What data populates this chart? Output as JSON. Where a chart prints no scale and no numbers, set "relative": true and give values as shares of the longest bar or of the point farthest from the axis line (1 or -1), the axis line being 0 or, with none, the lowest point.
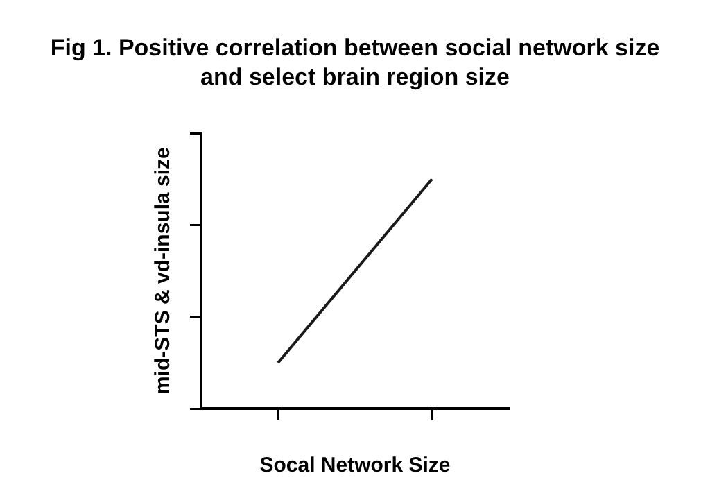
{
  "chart_data": {
    "type": "line",
    "title": "Fig 1. Positive correlation between social network size and select brain region size",
    "xlabel": "Socal Network Size",
    "ylabel": "mid-STS & vd-insula size",
    "categories": [
      null,
      null
    ],
    "series": [
      {
        "color": "#1a1a1a",
        "values": [
          0.2,
          1
        ]
      }
    ],
    "relative": true,
    "grid": false,
    "legend": false,
    "marker": "none",
    "line_style": "solid"
  }
}
